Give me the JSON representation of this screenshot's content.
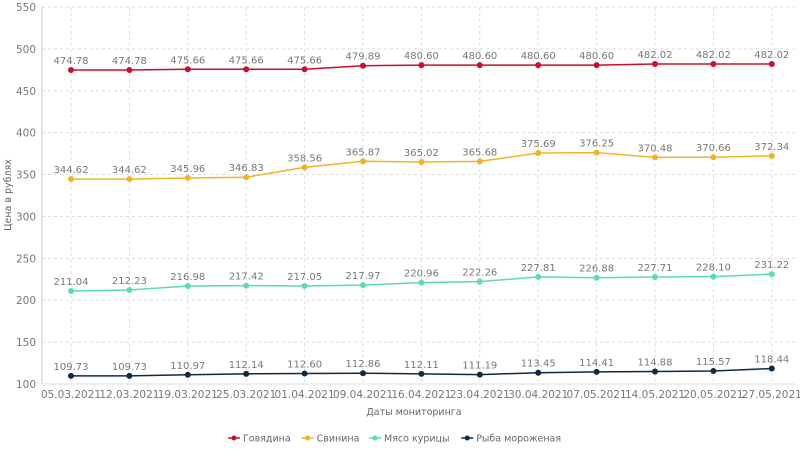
{
  "chart_data": {
    "type": "line",
    "xlabel": "Даты мониторинга",
    "ylabel": "Цена в рублях",
    "ylim": [
      100,
      550
    ],
    "yticks": [
      100,
      150,
      200,
      250,
      300,
      350,
      400,
      450,
      500,
      550
    ],
    "grid": true,
    "legend_position": "bottom",
    "categories": [
      "05.03.2021",
      "12.03.2021",
      "19.03.2021",
      "25.03.2021",
      "01.04.2021",
      "09.04.2021",
      "16.04.2021",
      "23.04.2021",
      "30.04.2021",
      "07.05.2021",
      "14.05.2021",
      "20.05.2021",
      "27.05.2021"
    ],
    "series": [
      {
        "name": "Говядина",
        "color": "#c8102e",
        "values": [
          474.78,
          474.78,
          475.66,
          475.66,
          475.66,
          479.89,
          480.6,
          480.6,
          480.6,
          480.6,
          482.02,
          482.02,
          482.02
        ]
      },
      {
        "name": "Свинина",
        "color": "#f0b323",
        "values": [
          344.62,
          344.62,
          345.96,
          346.83,
          358.56,
          365.87,
          365.02,
          365.68,
          375.69,
          376.25,
          370.48,
          370.66,
          372.34
        ]
      },
      {
        "name": "Мясо курицы",
        "color": "#5ddcb0",
        "values": [
          211.04,
          212.23,
          216.98,
          217.42,
          217.05,
          217.97,
          220.96,
          222.26,
          227.81,
          226.88,
          227.71,
          228.1,
          231.22
        ]
      },
      {
        "name": "Рыба мороженая",
        "color": "#0d2b45",
        "values": [
          109.73,
          109.73,
          110.97,
          112.14,
          112.6,
          112.86,
          112.11,
          111.19,
          113.45,
          114.41,
          114.88,
          115.57,
          118.44
        ]
      }
    ]
  }
}
